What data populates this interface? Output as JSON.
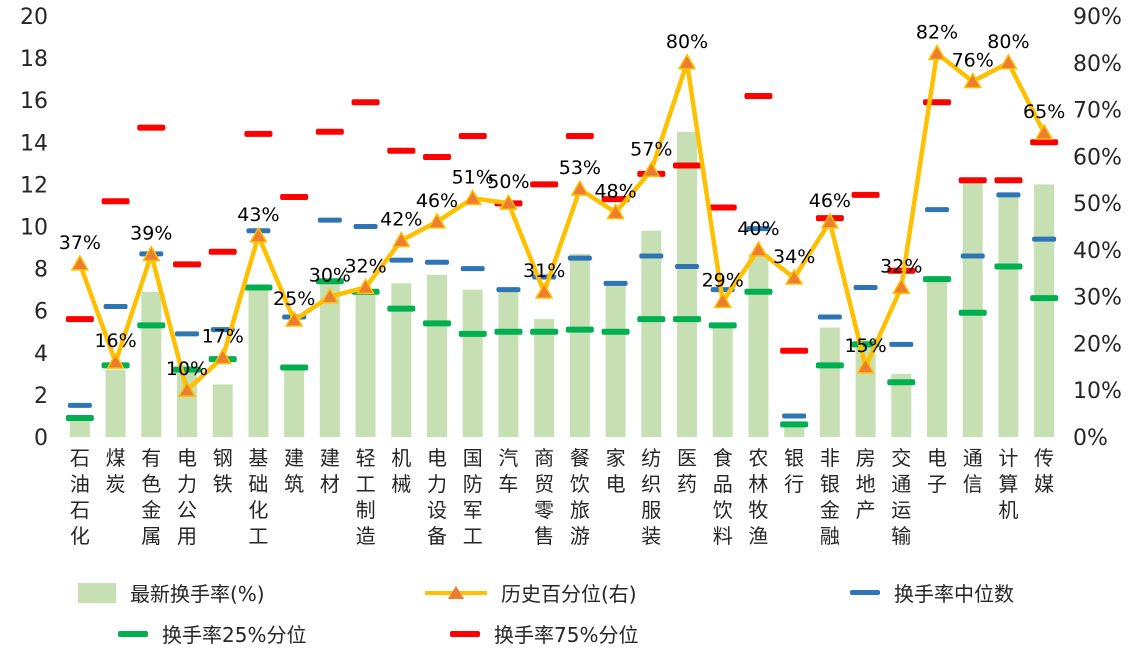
{
  "chart_data": {
    "type": "bar",
    "combo": "bar + line(right axis) + percentile dash markers",
    "categories": [
      "石油石化",
      "煤炭",
      "有色金属",
      "电力公用",
      "钢铁",
      "基础化工",
      "建筑",
      "建材",
      "轻工制造",
      "机械",
      "电力设备",
      "国防军工",
      "汽车",
      "商贸零售",
      "餐饮旅游",
      "家电",
      "纺织服装",
      "医药",
      "食品饮料",
      "农林牧渔",
      "银行",
      "非银金融",
      "房地产",
      "交通运输",
      "电子",
      "通信",
      "计算机",
      "传媒"
    ],
    "series": [
      {
        "name": "最新换手率(%)",
        "type": "bar",
        "axis": "left",
        "color": "#c6e0b4",
        "values": [
          0.8,
          3.2,
          6.9,
          3.2,
          2.5,
          7.1,
          3.3,
          7.4,
          6.9,
          7.3,
          7.7,
          7.0,
          7.0,
          5.6,
          8.7,
          7.3,
          9.8,
          14.5,
          5.3,
          8.7,
          0.6,
          5.2,
          4.6,
          3.0,
          7.4,
          12.3,
          11.6,
          12.0
        ]
      },
      {
        "name": "历史百分位(右)",
        "type": "line",
        "axis": "right",
        "line_color": "#ffc000",
        "marker_color": "#ed7d31",
        "values_pct": [
          37,
          16,
          39,
          10,
          17,
          43,
          25,
          30,
          32,
          42,
          46,
          51,
          50,
          31,
          53,
          48,
          57,
          80,
          29,
          40,
          34,
          46,
          15,
          32,
          82,
          76,
          80,
          65
        ],
        "point_labels": [
          "37%",
          "16%",
          "39%",
          "10%",
          "17%",
          "43%",
          "25%",
          "30%",
          "32%",
          "42%",
          "46%",
          "51%",
          "50%",
          "31%",
          "53%",
          "48%",
          "57%",
          "80%",
          "29%",
          "40%",
          "34%",
          "46%",
          "15%",
          "32%",
          "82%",
          "76%",
          "80%",
          "65%"
        ]
      },
      {
        "name": "换手率中位数",
        "type": "dash",
        "axis": "left",
        "color": "#2e75b6",
        "values": [
          1.5,
          6.2,
          8.7,
          4.9,
          5.1,
          9.8,
          5.7,
          10.3,
          10.0,
          8.4,
          8.3,
          8.0,
          7.0,
          7.6,
          8.5,
          7.3,
          8.6,
          8.1,
          7.0,
          9.9,
          1.0,
          5.7,
          7.1,
          4.4,
          10.8,
          8.6,
          11.5,
          9.4
        ]
      },
      {
        "name": "换手率25%分位",
        "type": "dash",
        "axis": "left",
        "color": "#00b050",
        "values": [
          0.9,
          3.4,
          5.3,
          3.2,
          3.7,
          7.1,
          3.3,
          7.4,
          6.9,
          6.1,
          5.4,
          4.9,
          5.0,
          5.0,
          5.1,
          5.0,
          5.6,
          5.6,
          5.3,
          6.9,
          0.6,
          3.4,
          4.4,
          2.6,
          7.5,
          5.9,
          8.1,
          6.6
        ]
      },
      {
        "name": "换手率75%分位",
        "type": "dash",
        "axis": "left",
        "color": "#ff0000",
        "values": [
          5.6,
          11.2,
          14.7,
          8.2,
          8.8,
          14.4,
          11.4,
          14.5,
          15.9,
          13.6,
          13.3,
          14.3,
          11.1,
          12.0,
          14.3,
          11.3,
          12.5,
          12.9,
          10.9,
          16.2,
          4.1,
          10.4,
          11.5,
          7.9,
          15.9,
          12.2,
          12.2,
          14.0
        ]
      }
    ],
    "left_axis": {
      "min": 0,
      "max": 20,
      "ticks": [
        0,
        2,
        4,
        6,
        8,
        10,
        12,
        14,
        16,
        18,
        20
      ]
    },
    "right_axis": {
      "min": 0,
      "max": 90,
      "ticks": [
        0,
        10,
        20,
        30,
        40,
        50,
        60,
        70,
        80,
        90
      ],
      "tick_labels": [
        "0%",
        "10%",
        "20%",
        "30%",
        "40%",
        "50%",
        "60%",
        "70%",
        "80%",
        "90%"
      ]
    },
    "title": "",
    "grid": false,
    "legend_position": "bottom"
  }
}
